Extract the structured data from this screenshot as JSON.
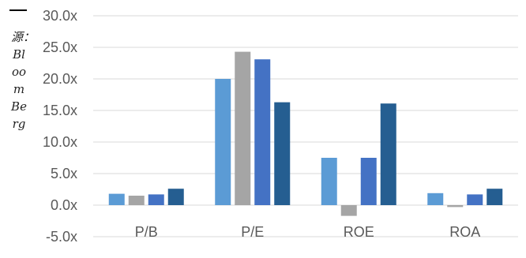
{
  "source_note": "源：BloomBerg",
  "chart_data": {
    "type": "bar",
    "categories": [
      "P/B",
      "P/E",
      "ROE",
      "ROA"
    ],
    "series": [
      {
        "values": [
          1.8,
          20.0,
          7.5,
          1.9
        ]
      },
      {
        "values": [
          1.5,
          24.3,
          -1.7,
          -0.3
        ]
      },
      {
        "values": [
          1.7,
          23.1,
          7.5,
          1.7
        ]
      },
      {
        "values": [
          2.6,
          16.3,
          16.1,
          2.6
        ]
      }
    ],
    "colors": [
      "#5b9bd5",
      "#a5a5a5",
      "#4472c4",
      "#255e91"
    ],
    "yticks": [
      "30.0x",
      "25.0x",
      "20.0x",
      "15.0x",
      "10.0x",
      "5.0x",
      "0.0x",
      "-5.0x"
    ],
    "ylim": [
      -5,
      30
    ],
    "grid": true,
    "title": "",
    "xlabel": "",
    "ylabel": ""
  }
}
